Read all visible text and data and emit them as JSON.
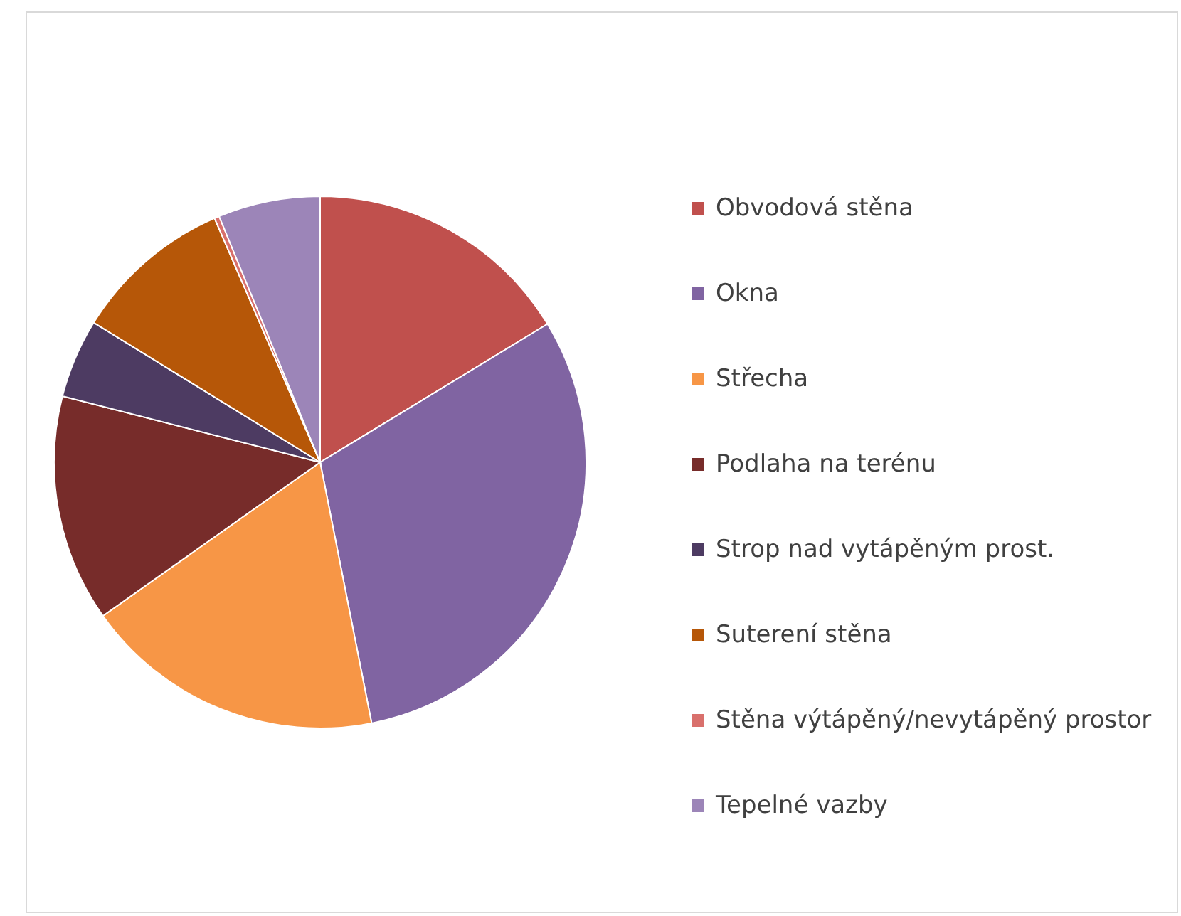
{
  "chart_data": {
    "type": "pie",
    "categories": [
      "Obvodová stěna",
      "Okna",
      "Střecha",
      "Podlaha na terénu",
      "Strop nad vytápěným prost.",
      "Suterení stěna",
      "Stěna výtápěný/nevytápěný prostor",
      "Tepelné vazby"
    ],
    "values": [
      16.3,
      30.6,
      18.3,
      13.8,
      4.8,
      9.7,
      0.3,
      6.2
    ],
    "colors": [
      "#c0504d",
      "#8064a2",
      "#f79646",
      "#772c2a",
      "#4d3b62",
      "#b65708",
      "#d9706c",
      "#9c85b8"
    ],
    "legend": "right"
  }
}
